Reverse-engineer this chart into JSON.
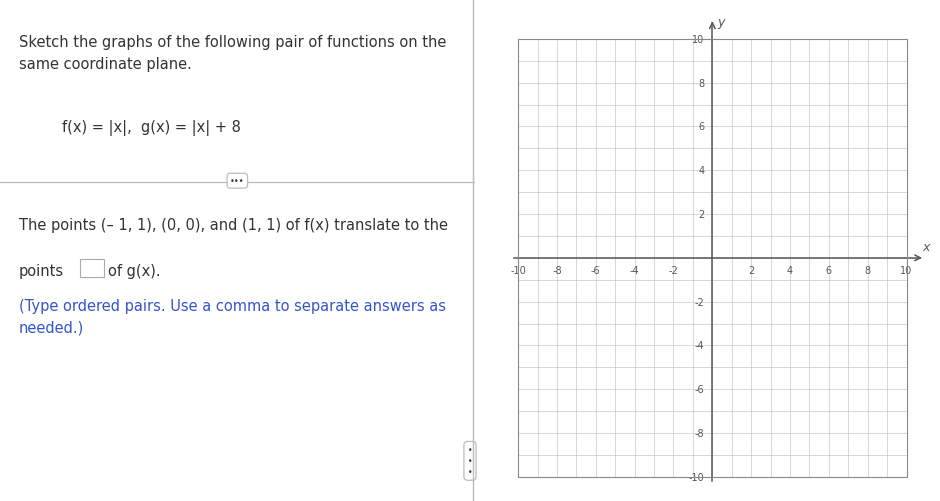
{
  "title_text": "Sketch the graphs of the following pair of functions on the\nsame coordinate plane.",
  "formula_text": "f(x) = |x|,  g(x) = |x| + 8",
  "body_text_line1": "The points (– 1, 1), (0, 0), and (1, 1) of f(x) translate to the",
  "body_text_line2": "points",
  "body_text_line3": "of g(x).",
  "body_text_line4": "(Type ordered pairs. Use a comma to separate answers as\nneeded.)",
  "text_color_blue": "#3355CC",
  "text_color_black": "#333333",
  "grid_color": "#C8C8C8",
  "axis_color": "#555555",
  "border_color": "#888888",
  "background_color": "#FFFFFF",
  "divider_color": "#BBBBBB",
  "x_min": -10,
  "x_max": 10,
  "y_min": -10,
  "y_max": 10,
  "tick_step": 2,
  "fig_width": 9.4,
  "fig_height": 5.02,
  "dpi": 100
}
